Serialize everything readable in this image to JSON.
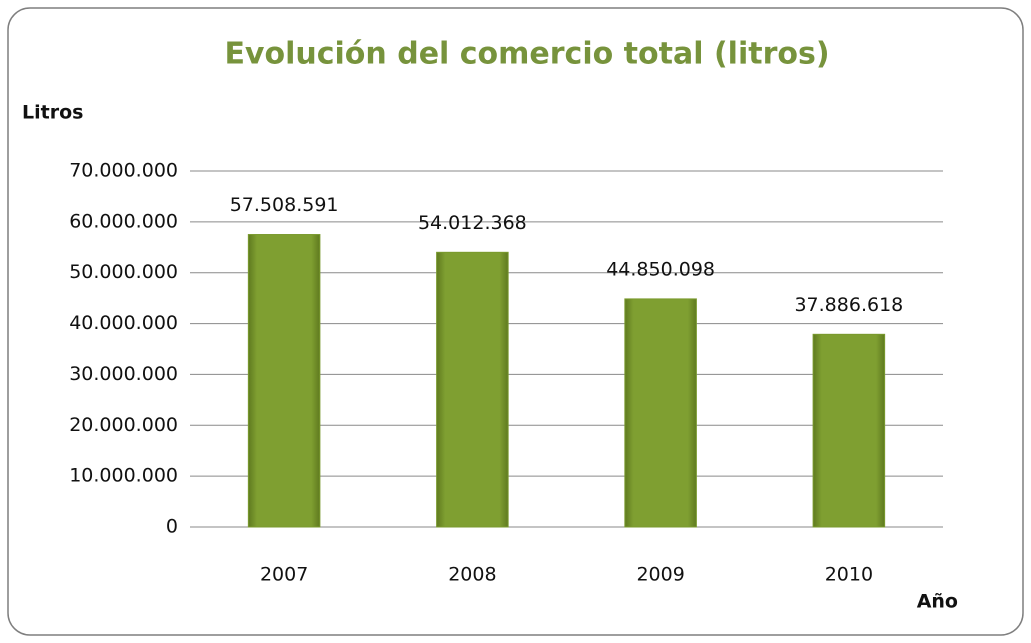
{
  "chart_data": {
    "type": "bar",
    "title": "Evolución del comercio total (litros)",
    "y_label": "Litros",
    "x_label": "Año",
    "categories": [
      "2007",
      "2008",
      "2009",
      "2010"
    ],
    "values": [
      57508591,
      54012368,
      44850098,
      37886618
    ],
    "value_labels": [
      "57.508.591",
      "54.012.368",
      "44.850.098",
      "37.886.618"
    ],
    "color": "#7a9a2e",
    "ylim": [
      0,
      70000000
    ],
    "yticks": [
      0,
      {
        "value": 10000000,
        "label": "10.000.000"
      },
      {
        "value": 20000000,
        "label": "20.000.000"
      },
      {
        "value": 30000000,
        "label": "30.000.000"
      },
      {
        "value": 40000000,
        "label": "40.000.000"
      },
      {
        "value": 50000000,
        "label": "50.000.000"
      },
      {
        "value": 60000000,
        "label": "60.000.000"
      },
      {
        "value": 70000000,
        "label": "70.000.000"
      }
    ],
    "grid": true
  }
}
